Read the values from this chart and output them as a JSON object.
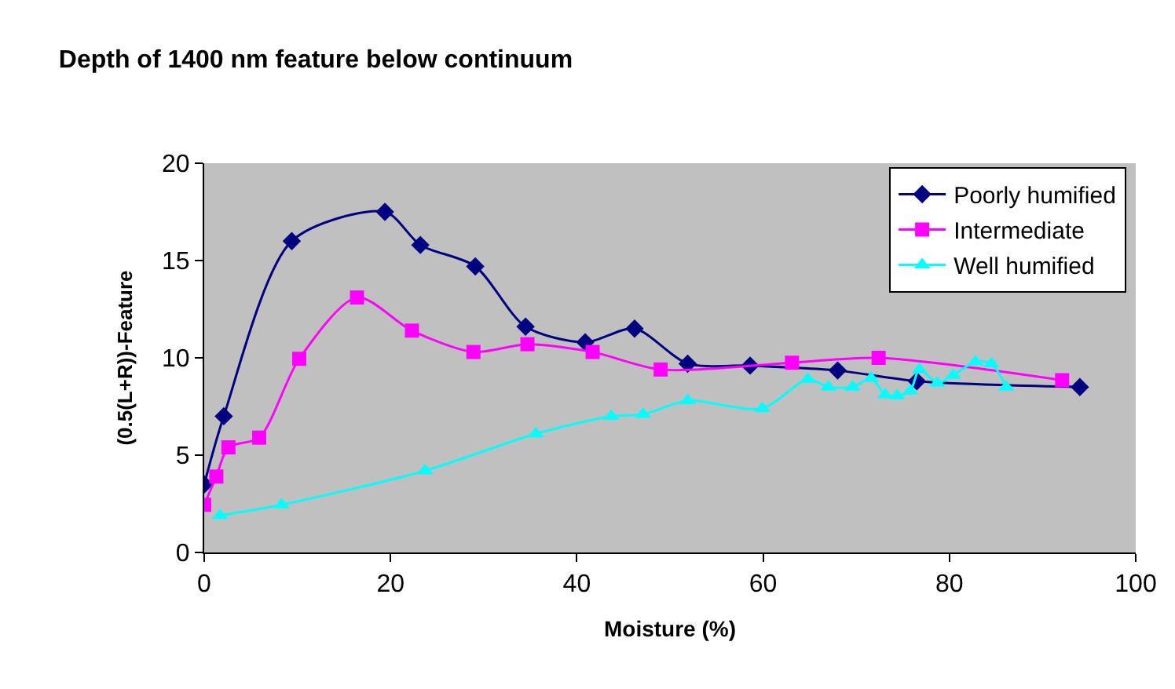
{
  "chart_data": {
    "type": "line",
    "title": "Depth of 1400 nm feature below continuum",
    "xlabel": "Moisture (%)",
    "ylabel": "(0.5(L+R))-Feature",
    "xlim": [
      0,
      100
    ],
    "xticks": [
      0,
      20,
      40,
      60,
      80,
      100
    ],
    "ylim": [
      0,
      20
    ],
    "yticks": [
      0,
      5,
      10,
      15,
      20
    ],
    "grid": false,
    "legend": "top right",
    "series": [
      {
        "name": "Poorly humified",
        "color": "#000080",
        "marker": "diamond",
        "x": [
          0,
          2.1,
          9.4,
          19.4,
          23.2,
          29.1,
          34.5,
          40.9,
          46.2,
          51.9,
          58.6,
          68,
          76.5,
          94
        ],
        "values": [
          3.5,
          7.0,
          16.0,
          17.5,
          15.8,
          14.7,
          11.6,
          10.8,
          11.5,
          9.7,
          9.6,
          9.35,
          8.8,
          8.5
        ]
      },
      {
        "name": "Intermediate",
        "color": "#ff00ff",
        "marker": "square",
        "x": [
          0,
          1.3,
          2.6,
          5.9,
          10.2,
          16.4,
          22.3,
          28.9,
          34.7,
          41.7,
          49,
          63.1,
          72.4,
          92.1
        ],
        "values": [
          2.45,
          3.9,
          5.4,
          5.9,
          9.95,
          13.1,
          11.4,
          10.3,
          10.7,
          10.3,
          9.4,
          9.75,
          10.0,
          8.85
        ]
      },
      {
        "name": "Well humified",
        "color": "#00ffff",
        "marker": "triangle",
        "x": [
          1.7,
          8.3,
          23.7,
          35.6,
          43.7,
          47.1,
          51.9,
          59.9,
          64.8,
          67,
          69.6,
          71.6,
          73.1,
          74.4,
          75.8,
          76.8,
          78.7,
          80.4,
          82.8,
          84.5,
          86.1
        ],
        "values": [
          1.9,
          2.45,
          4.2,
          6.1,
          7.0,
          7.1,
          7.8,
          7.4,
          8.9,
          8.5,
          8.5,
          8.95,
          8.1,
          8.05,
          8.3,
          9.4,
          8.7,
          9.1,
          9.8,
          9.7,
          8.5
        ]
      }
    ]
  }
}
